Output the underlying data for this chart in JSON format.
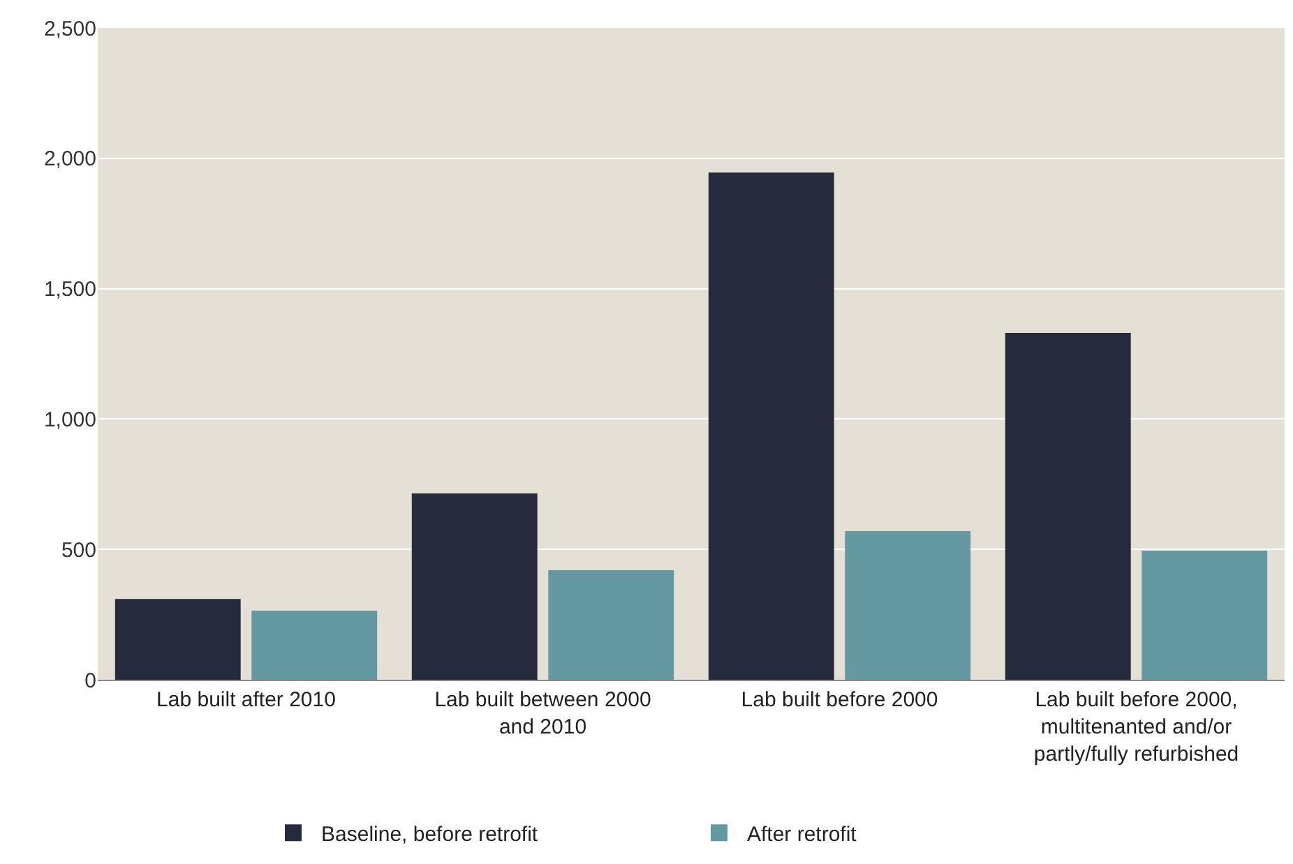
{
  "chart_data": {
    "type": "bar",
    "categories": [
      "Lab built after 2010",
      "Lab built between 2000 and 2010",
      "Lab built before 2000",
      "Lab built before 2000, multitenanted and/or partly/fully refurbished"
    ],
    "series": [
      {
        "name": "Baseline, before retrofit",
        "color": "#262a3d",
        "values": [
          310,
          715,
          1945,
          1330
        ]
      },
      {
        "name": "After retrofit",
        "color": "#6499a1",
        "values": [
          265,
          420,
          570,
          495
        ]
      }
    ],
    "ylim": [
      0,
      2500
    ],
    "yticks": [
      0,
      {
        "value": 500,
        "label": "500"
      },
      {
        "value": 1000,
        "label": "1,000"
      },
      {
        "value": 1500,
        "label": "1,500"
      },
      {
        "value": 2000,
        "label": "2,000"
      },
      {
        "value": 2500,
        "label": "2,500"
      }
    ],
    "grid": "y",
    "legend": "bottom"
  }
}
